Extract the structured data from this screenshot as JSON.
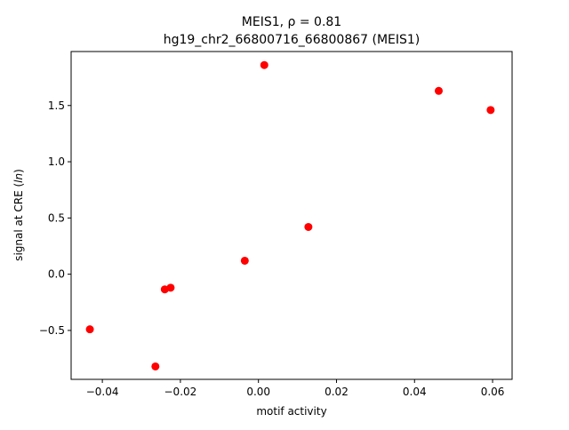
{
  "chart_data": {
    "type": "scatter",
    "title_line1": "MEIS1, ρ = 0.81",
    "title_line2": "hg19_chr2_66800716_66800867 (MEIS1)",
    "xlabel": "motif activity",
    "ylabel": "signal at CRE (ln)",
    "ylabel_prefix": "signal at CRE (",
    "ylabel_var": "ln",
    "ylabel_suffix": ")",
    "xlim": [
      -0.048,
      0.065
    ],
    "ylim": [
      -0.935,
      1.98
    ],
    "x_ticks": [
      -0.04,
      -0.02,
      0.0,
      0.02,
      0.04,
      0.06
    ],
    "x_tick_labels": [
      "−0.04",
      "−0.02",
      "0.00",
      "0.02",
      "0.04",
      "0.06"
    ],
    "y_ticks": [
      -0.5,
      0.0,
      0.5,
      1.0,
      1.5
    ],
    "y_tick_labels": [
      "−0.5",
      "0.0",
      "0.5",
      "1.0",
      "1.5"
    ],
    "grid": false,
    "marker_color": "#ff0000",
    "points": [
      {
        "x": -0.0432,
        "y": -0.49
      },
      {
        "x": -0.0264,
        "y": -0.82
      },
      {
        "x": -0.024,
        "y": -0.135
      },
      {
        "x": -0.0225,
        "y": -0.12
      },
      {
        "x": -0.0035,
        "y": 0.12
      },
      {
        "x": 0.0015,
        "y": 1.86
      },
      {
        "x": 0.0128,
        "y": 0.42
      },
      {
        "x": 0.0462,
        "y": 1.63
      },
      {
        "x": 0.0595,
        "y": 1.46
      }
    ]
  }
}
